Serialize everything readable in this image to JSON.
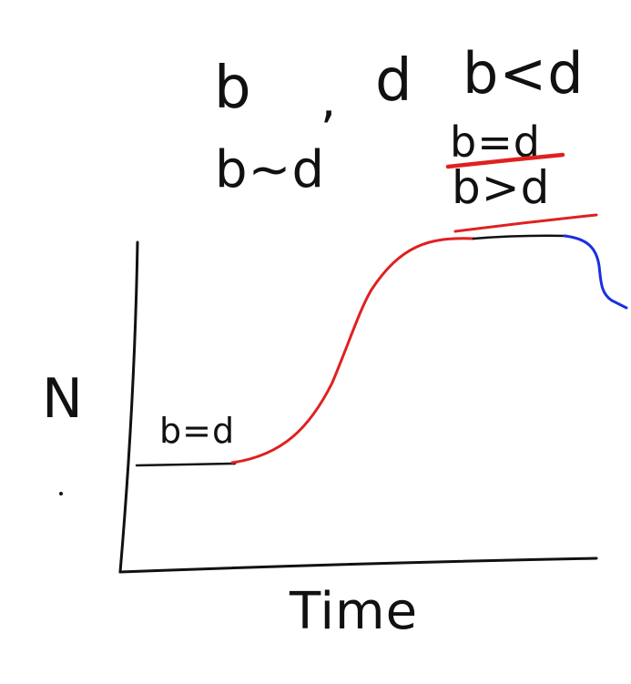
{
  "labels": {
    "b": "b",
    "comma": ",",
    "d": "d",
    "b_less_d": "b<d",
    "b_approx_d": "b~d",
    "b_eq_d_top": "b=d",
    "b_gt_d": "b>d",
    "b_eq_d_plateau": "b=d",
    "y_axis": "N",
    "x_axis": "Time"
  },
  "colors": {
    "ink": "#111111",
    "red": "#e02020",
    "blue": "#1a2fe0",
    "background": "#ffffff"
  }
}
